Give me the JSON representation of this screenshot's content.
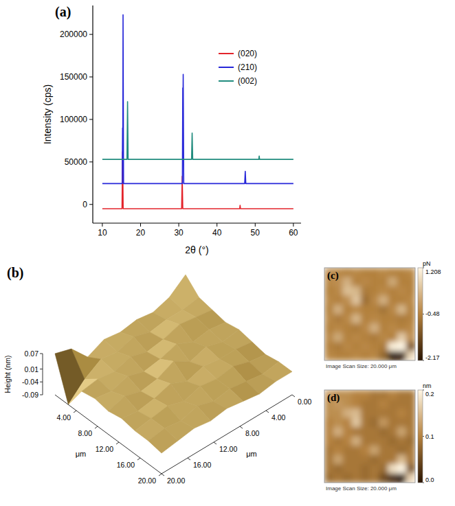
{
  "chart_data": [
    {
      "type": "line",
      "title": "(a)",
      "x_label": "2θ (°)",
      "y_label": "Intensity (cps)",
      "xlim": [
        7.5,
        62
      ],
      "xticks": [
        10,
        20,
        30,
        40,
        50,
        60
      ],
      "ylim": [
        -22000,
        234000
      ],
      "yticks": [
        0,
        50000,
        100000,
        150000,
        200000
      ],
      "grid": false,
      "legend": "upper right",
      "series": [
        {
          "name": "(020)",
          "color": "#e3242b",
          "x": [
            10,
            15.15,
            15.3,
            15.45,
            30.75,
            30.9,
            31.05,
            45.95,
            46.05,
            46.15,
            60
          ],
          "values": [
            -5000,
            -5000,
            62000,
            -5000,
            -5000,
            33000,
            -5000,
            -5000,
            -1000,
            -5000,
            -5000
          ]
        },
        {
          "name": "(210)",
          "color": "#2626d9",
          "x": [
            10,
            15.2,
            15.3,
            15.36,
            15.42,
            15.55,
            30.95,
            31.05,
            31.1,
            31.16,
            31.3,
            47.25,
            47.4,
            47.55,
            60
          ],
          "values": [
            24500,
            24500,
            90000,
            50000,
            223000,
            24500,
            24500,
            137000,
            100000,
            153000,
            24500,
            24500,
            39000,
            24500,
            24500
          ]
        },
        {
          "name": "(002)",
          "color": "#218c7e",
          "x": [
            10,
            16.45,
            16.6,
            16.75,
            33.35,
            33.5,
            33.65,
            50.95,
            51.05,
            51.15,
            60
          ],
          "values": [
            53000,
            53000,
            121000,
            53000,
            53000,
            84000,
            53000,
            53000,
            57000,
            53000,
            53000
          ]
        }
      ]
    },
    {
      "type": "surface",
      "title": "(b)",
      "x_label": "μm",
      "y_label": "μm",
      "z_label": "Height (nm)",
      "xlim": [
        0,
        20
      ],
      "xticks": [
        {
          "value": 4,
          "label": "4.00"
        },
        {
          "value": 8,
          "label": "8.00"
        },
        {
          "value": 12,
          "label": "12.00"
        },
        {
          "value": 16,
          "label": "16.00"
        },
        {
          "value": 20,
          "label": "20.00"
        }
      ],
      "ylim": [
        0,
        20
      ],
      "yticks": [
        {
          "value": 0,
          "label": "0.00"
        },
        {
          "value": 4,
          "label": "4.00"
        },
        {
          "value": 8,
          "label": "8.00"
        },
        {
          "value": 12,
          "label": "12.00"
        },
        {
          "value": 16,
          "label": "16.00"
        },
        {
          "value": 20,
          "label": "20.00"
        }
      ],
      "zlim": [
        -0.09,
        0.07
      ],
      "zticks": [
        -0.09,
        -0.04,
        0.01,
        0.07
      ],
      "x": [
        0,
        2.5,
        5,
        7.5,
        10,
        12.5,
        15,
        17.5,
        20
      ],
      "y": [
        0,
        2.5,
        5,
        7.5,
        10,
        12.5,
        15,
        17.5,
        20
      ],
      "z": [
        [
          0.07,
          0.02,
          0.01,
          0.0,
          0.01,
          0.0,
          -0.01,
          0.0,
          0.0
        ],
        [
          0.02,
          0.01,
          0.02,
          0.01,
          0.0,
          0.01,
          0.0,
          -0.01,
          0.0
        ],
        [
          0.0,
          0.01,
          0.03,
          0.0,
          0.02,
          0.01,
          0.02,
          0.0,
          -0.01
        ],
        [
          0.01,
          0.0,
          0.01,
          0.03,
          0.0,
          0.02,
          0.01,
          0.01,
          0.0
        ],
        [
          0.0,
          0.02,
          0.0,
          0.01,
          0.04,
          0.0,
          0.02,
          0.0,
          0.01
        ],
        [
          0.01,
          0.0,
          0.02,
          0.0,
          0.01,
          0.03,
          0.0,
          0.02,
          0.0
        ],
        [
          -0.02,
          0.01,
          0.0,
          0.02,
          0.0,
          0.01,
          0.02,
          0.0,
          0.01
        ],
        [
          0.05,
          -0.03,
          0.01,
          0.0,
          0.02,
          0.0,
          0.01,
          0.01,
          0.0
        ],
        [
          0.07,
          -0.09,
          0.0,
          0.01,
          0.0,
          0.01,
          0.0,
          0.0,
          -0.01
        ]
      ]
    },
    {
      "type": "image",
      "title": "(c)",
      "unit": "pN",
      "caption": "Image Scan Size: 20.000 μm",
      "colorbar_range": [
        -2.17,
        1.208
      ],
      "colorbar_ticks": [
        1.208,
        -0.48,
        -2.17
      ],
      "cells": [
        [
          -0.3,
          -0.4,
          -0.5,
          -0.4,
          -0.5,
          -0.5,
          -0.4,
          -0.5,
          -0.5,
          -0.4
        ],
        [
          -0.4,
          -0.3,
          0.2,
          -0.5,
          -0.4,
          -0.5,
          -0.5,
          0.1,
          -0.5,
          -0.5
        ],
        [
          -0.5,
          -0.4,
          0.4,
          0.3,
          -0.6,
          -0.5,
          -0.4,
          -0.5,
          -0.4,
          -0.5
        ],
        [
          -0.4,
          -0.5,
          -0.3,
          0.5,
          -0.8,
          -0.4,
          0.2,
          -0.5,
          -0.5,
          -0.4
        ],
        [
          -0.5,
          0.2,
          -0.5,
          -0.4,
          -0.5,
          -0.5,
          -0.7,
          -0.4,
          0.3,
          -0.5
        ],
        [
          -0.4,
          -0.6,
          -0.4,
          0.3,
          -0.5,
          -0.4,
          -0.5,
          -0.5,
          -0.6,
          -0.5
        ],
        [
          -0.5,
          -0.4,
          -0.5,
          -0.6,
          -0.4,
          0.2,
          -0.5,
          -0.4,
          -0.5,
          -0.4
        ],
        [
          -0.4,
          0.1,
          -0.5,
          -0.4,
          -0.5,
          -0.6,
          -0.4,
          -0.5,
          0.6,
          -0.3
        ],
        [
          -0.5,
          -0.6,
          -0.4,
          -0.5,
          -0.4,
          -0.5,
          -0.6,
          1.1,
          1.208,
          -1.2
        ],
        [
          -0.4,
          -0.5,
          -0.5,
          -0.4,
          -0.5,
          -0.4,
          -0.9,
          -2.17,
          -2.0,
          0.8
        ]
      ]
    },
    {
      "type": "image",
      "title": "(d)",
      "unit": "nm",
      "caption": "Image Scan Size: 20.000 μm",
      "colorbar_range": [
        0,
        0.2
      ],
      "colorbar_ticks": [
        0.2,
        0.1,
        {
          "value": 0,
          "label": "0.0"
        }
      ],
      "cells": [
        [
          0.12,
          0.11,
          0.11,
          0.1,
          0.1,
          0.09,
          0.09,
          0.1,
          0.09,
          0.09
        ],
        [
          0.11,
          0.12,
          0.11,
          0.1,
          0.09,
          0.09,
          0.1,
          0.09,
          0.09,
          0.09
        ],
        [
          0.11,
          0.11,
          0.14,
          0.15,
          0.09,
          0.09,
          0.09,
          0.09,
          0.1,
          0.09
        ],
        [
          0.1,
          0.11,
          0.1,
          0.16,
          0.09,
          0.08,
          0.12,
          0.09,
          0.09,
          0.09
        ],
        [
          0.1,
          0.14,
          0.1,
          0.09,
          0.09,
          0.09,
          0.08,
          0.09,
          0.13,
          0.09
        ],
        [
          0.1,
          0.09,
          0.1,
          0.14,
          0.09,
          0.09,
          0.09,
          0.08,
          0.09,
          0.08
        ],
        [
          0.09,
          0.1,
          0.09,
          0.09,
          0.1,
          0.13,
          0.09,
          0.09,
          0.08,
          0.09
        ],
        [
          0.09,
          0.13,
          0.09,
          0.09,
          0.09,
          0.08,
          0.09,
          0.09,
          0.15,
          0.09
        ],
        [
          0.09,
          0.08,
          0.09,
          0.09,
          0.08,
          0.09,
          0.08,
          0.18,
          0.2,
          0.06
        ],
        [
          0.08,
          0.09,
          0.08,
          0.09,
          0.08,
          0.09,
          0.05,
          0.02,
          0.0,
          0.17
        ]
      ]
    }
  ]
}
